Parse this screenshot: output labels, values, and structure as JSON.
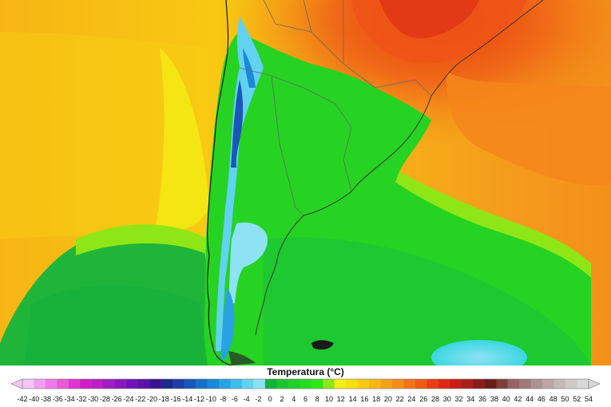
{
  "legend": {
    "title": "Temperatura (°C)",
    "ticks": [
      "-42",
      "-40",
      "-38",
      "-36",
      "-34",
      "-32",
      "-30",
      "-28",
      "-26",
      "-24",
      "-22",
      "-20",
      "-18",
      "-16",
      "-14",
      "-12",
      "-10",
      "-8",
      "-6",
      "-4",
      "-2",
      "0",
      "2",
      "4",
      "6",
      "8",
      "10",
      "12",
      "14",
      "16",
      "18",
      "20",
      "22",
      "24",
      "26",
      "28",
      "30",
      "32",
      "34",
      "36",
      "38",
      "40",
      "42",
      "44",
      "46",
      "48",
      "50",
      "52",
      "54"
    ],
    "colors": [
      "#f3c6f3",
      "#f29df2",
      "#ee7ae9",
      "#e85ad8",
      "#de36cf",
      "#cf1fc9",
      "#bc1ec6",
      "#a01ec3",
      "#8818bd",
      "#7014b8",
      "#5a12a8",
      "#3b1590",
      "#1d2a8e",
      "#1f3fa6",
      "#1957b8",
      "#1670c9",
      "#1b88d8",
      "#29a2e3",
      "#3dbced",
      "#62d2f1",
      "#8de2f4",
      "#12b43a",
      "#1dc233",
      "#22cf28",
      "#26dc1f",
      "#2ee814",
      "#8fe617",
      "#f3ef14",
      "#f7df12",
      "#f8cb12",
      "#f6b615",
      "#f4a21b",
      "#f48c1a",
      "#f27418",
      "#ef5a16",
      "#e93f14",
      "#dc2814",
      "#c81d16",
      "#a9201b",
      "#8b1c1a",
      "#6a1c1a",
      "#7d3e3b",
      "#946362",
      "#a37977",
      "#b09190",
      "#bca5a4",
      "#c6b8b7",
      "#cfcaca",
      "#d8d8d8"
    ]
  }
}
